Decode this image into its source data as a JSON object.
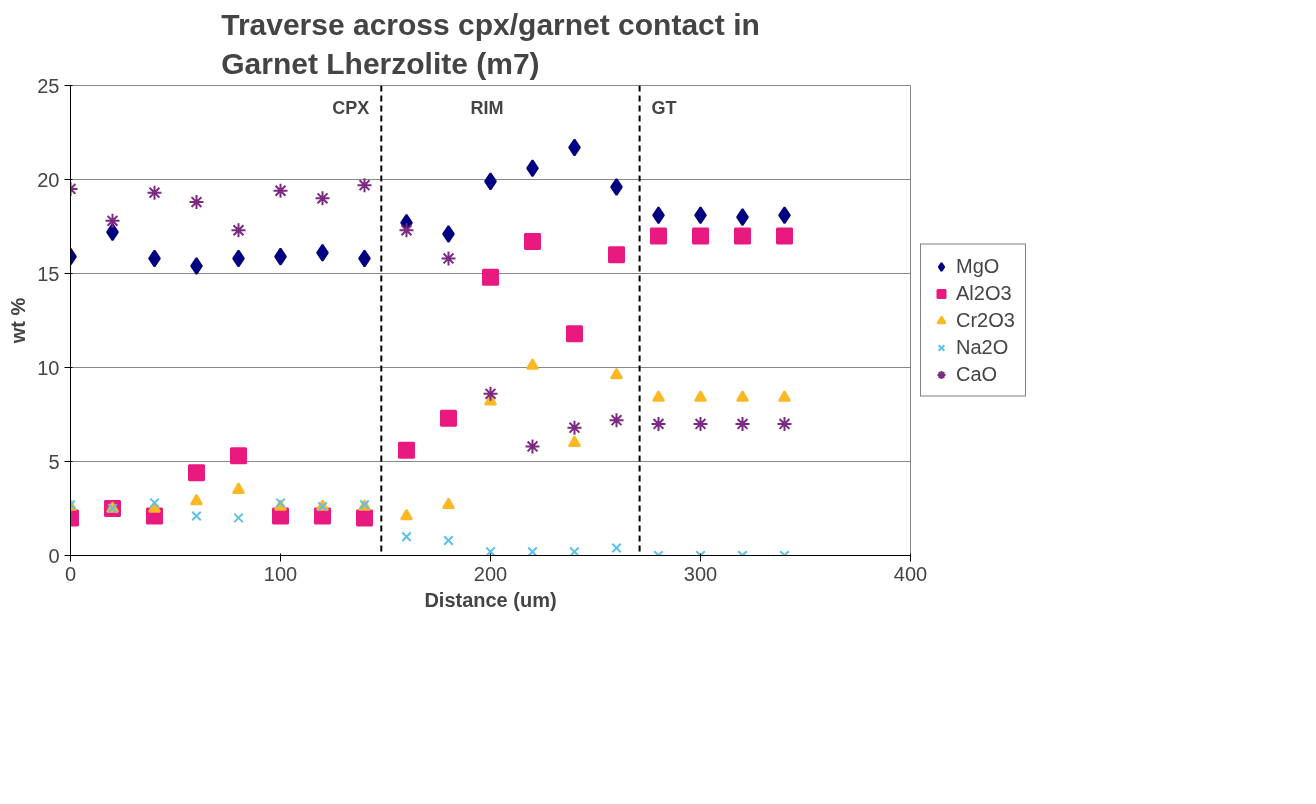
{
  "chart_data": {
    "type": "scatter",
    "title": "Traverse across cpx/garnet contact in\nGarnet Lherzolite (m7)",
    "xlabel": "Distance (um)",
    "ylabel": "wt %",
    "x": [
      0,
      20,
      40,
      60,
      80,
      100,
      120,
      140,
      160,
      180,
      200,
      220,
      240,
      260,
      280,
      300,
      320,
      340
    ],
    "series": [
      {
        "name": "MgO",
        "color": "#000080",
        "marker": "diamond",
        "values": [
          15.9,
          17.2,
          15.8,
          15.4,
          15.8,
          15.9,
          16.1,
          15.8,
          17.7,
          17.1,
          19.9,
          20.6,
          21.7,
          19.6,
          18.1,
          18.1,
          18.0,
          18.1
        ]
      },
      {
        "name": "Al2O3",
        "color": "#e8197f",
        "marker": "square",
        "values": [
          2.0,
          2.5,
          2.1,
          4.4,
          5.3,
          2.1,
          2.1,
          2.0,
          5.6,
          7.3,
          14.8,
          16.7,
          11.8,
          16.0,
          17.0,
          17.0,
          17.0,
          17.0
        ]
      },
      {
        "name": "Cr2O3",
        "color": "#fbb824",
        "marker": "triangle",
        "values": [
          2.6,
          2.5,
          2.5,
          2.9,
          3.5,
          2.6,
          2.6,
          2.6,
          2.1,
          2.7,
          8.2,
          10.1,
          6.0,
          9.6,
          8.4,
          8.4,
          8.4,
          8.4
        ]
      },
      {
        "name": "Na2O",
        "color": "#5bc0eb",
        "marker": "x",
        "values": [
          2.7,
          2.5,
          2.8,
          2.1,
          2.0,
          2.8,
          2.6,
          2.7,
          1.0,
          0.8,
          0.2,
          0.2,
          0.2,
          0.4,
          0.0,
          0.0,
          0.0,
          0.0
        ]
      },
      {
        "name": "CaO",
        "color": "#7b2a82",
        "marker": "cross",
        "values": [
          19.5,
          17.8,
          19.3,
          18.8,
          17.3,
          19.4,
          19.0,
          19.7,
          17.3,
          15.8,
          8.6,
          5.8,
          6.8,
          7.2,
          7.0,
          7.0,
          7.0,
          7.0
        ]
      }
    ],
    "xlim": [
      0,
      400
    ],
    "xticks": [
      0,
      100,
      200,
      300,
      400
    ],
    "ylim": [
      0,
      25
    ],
    "yticks": [
      0,
      5,
      10,
      15,
      20,
      25
    ],
    "ref_lines": [
      {
        "axis": "x",
        "value": 148,
        "color": "#000000",
        "line_style": "dashed"
      },
      {
        "axis": "x",
        "value": 271,
        "color": "#000000",
        "line_style": "dashed"
      }
    ],
    "annotations": [
      "CPX",
      "RIM",
      "GT"
    ],
    "grid": "y",
    "legend": "right"
  }
}
